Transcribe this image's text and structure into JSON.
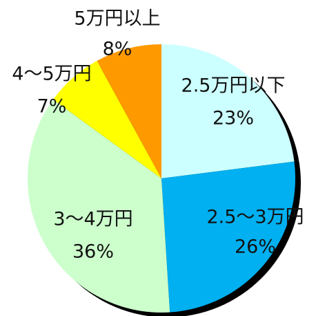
{
  "chart_data": {
    "type": "pie",
    "categories": [
      "2.5万円以下",
      "2.5～3万円",
      "3～4万円",
      "4～5万円",
      "5万円以上"
    ],
    "values": [
      23,
      26,
      36,
      7,
      8
    ],
    "value_labels": [
      "23%",
      "26%",
      "36%",
      "7%",
      "8%"
    ],
    "colors": [
      "#ccffff",
      "#00b0f0",
      "#ccffcc",
      "#ffff00",
      "#ff9900"
    ]
  }
}
